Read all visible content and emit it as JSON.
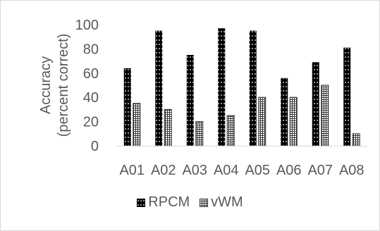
{
  "chart_data": {
    "type": "bar",
    "categories": [
      "A01",
      "A02",
      "A03",
      "A04",
      "A05",
      "A06",
      "A07",
      "A08"
    ],
    "series": [
      {
        "name": "RPCM",
        "values": [
          64,
          95,
          75,
          97,
          95,
          56,
          69,
          81
        ],
        "color": "#000000",
        "pattern": "dots"
      },
      {
        "name": "vWM",
        "values": [
          35,
          30,
          20,
          25,
          40,
          40,
          50,
          10
        ],
        "color": "#595959",
        "pattern": "grid"
      }
    ],
    "ylabel_line1": "Accuracy",
    "ylabel_line2": "(percent correct)",
    "ylim": [
      0,
      100
    ],
    "yticks": [
      0,
      20,
      40,
      60,
      80,
      100
    ],
    "grid": false,
    "legend_position": "bottom"
  }
}
